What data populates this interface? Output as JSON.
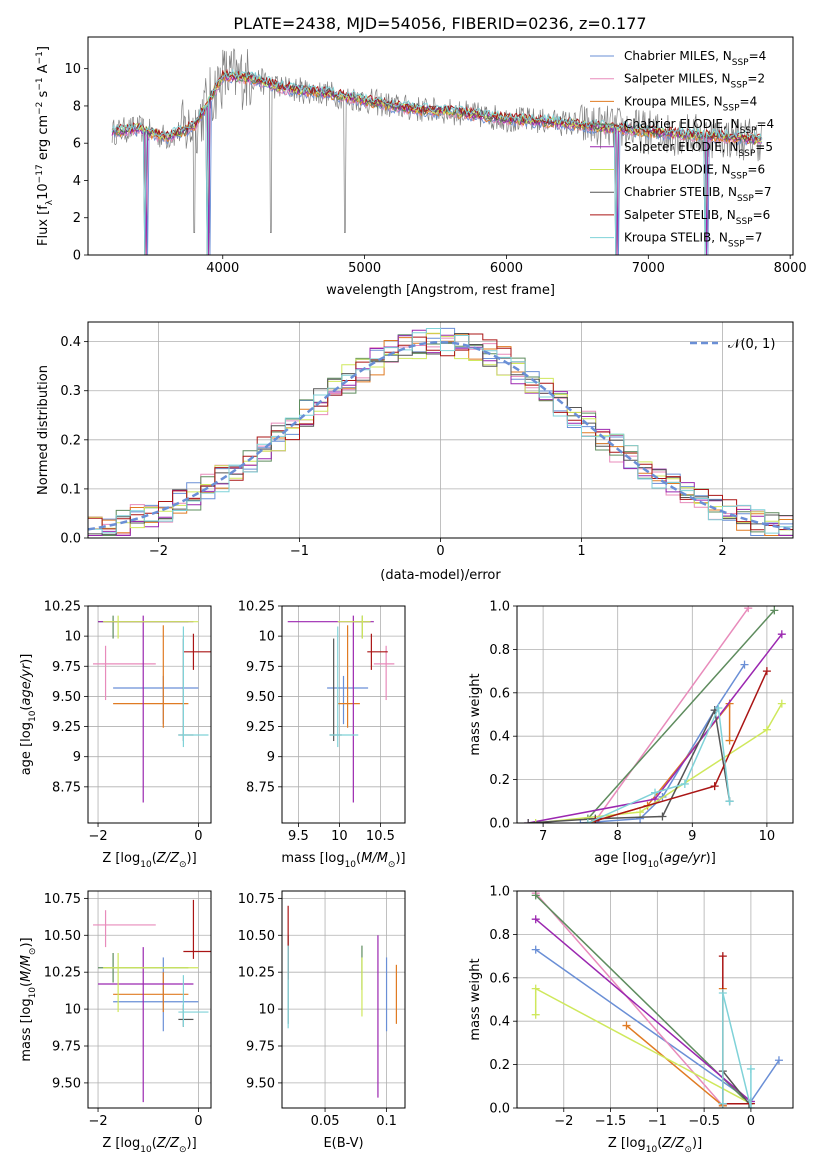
{
  "figure": {
    "title": "PLATE=2438, MJD=54056, FIBERID=0236, z=0.177",
    "colors": {
      "Chabrier MILES": "#6a8fd6",
      "Salpeter MILES": "#e88bbb",
      "Kroupa MILES": "#e07b23",
      "Chabrier ELODIE": "#5e8c5e",
      "Salpeter ELODIE": "#9b27b0",
      "Kroupa ELODIE": "#cfe85c",
      "Chabrier STELIB": "#555555",
      "Salpeter STELIB": "#aa1515",
      "Kroupa STELIB": "#7fd2d8",
      "data": "#808080"
    }
  },
  "chart_data": [
    {
      "id": "spectrum",
      "type": "line",
      "xlabel": "wavelength [Angstrom, rest frame]",
      "ylabel": "Flux [f_λ10^-17 erg cm^-2 s^-1 A^-1]",
      "xlim": [
        3050,
        8020
      ],
      "ylim": [
        0,
        11.7
      ],
      "xticks": [
        4000,
        5000,
        6000,
        7000,
        8000
      ],
      "yticks": [
        0,
        2,
        4,
        6,
        8,
        10
      ],
      "legend_position": "right",
      "legend": [
        {
          "name": "Chabrier MILES",
          "n_ssp": 4
        },
        {
          "name": "Salpeter MILES",
          "n_ssp": 2
        },
        {
          "name": "Kroupa MILES",
          "n_ssp": 4
        },
        {
          "name": "Chabrier ELODIE",
          "n_ssp": 4
        },
        {
          "name": "Salpeter ELODIE",
          "n_ssp": 5
        },
        {
          "name": "Kroupa ELODIE",
          "n_ssp": 6
        },
        {
          "name": "Chabrier STELIB",
          "n_ssp": 7
        },
        {
          "name": "Salpeter STELIB",
          "n_ssp": 6
        },
        {
          "name": "Kroupa STELIB",
          "n_ssp": 7
        }
      ],
      "continuum": {
        "x": [
          3220,
          3400,
          3600,
          3800,
          4000,
          4200,
          4400,
          4600,
          4800,
          5000,
          5200,
          5400,
          5600,
          5800,
          6000,
          6200,
          6400,
          6600,
          6800,
          7000,
          7200,
          7400,
          7600,
          7800
        ],
        "y": [
          6.6,
          6.8,
          6.3,
          6.9,
          9.6,
          9.5,
          9.0,
          8.8,
          8.6,
          8.3,
          8.0,
          7.8,
          7.7,
          7.5,
          7.3,
          7.2,
          7.1,
          6.9,
          6.8,
          6.6,
          6.5,
          6.4,
          6.3,
          6.2
        ]
      },
      "annotated_features": {
        "data_spikes_down_at": [
          3450,
          3800,
          3900,
          4340,
          4860
        ],
        "model_drops_to_zero_at": [
          3470,
          3910,
          6790,
          7420
        ]
      }
    },
    {
      "id": "residuals",
      "type": "histogram",
      "xlabel": "(data-model)/error",
      "ylabel": "Normed distribution",
      "xlim": [
        -2.5,
        2.5
      ],
      "ylim": [
        0,
        0.44
      ],
      "xticks": [
        -2,
        -1,
        0,
        1,
        2
      ],
      "yticks": [
        0.0,
        0.1,
        0.2,
        0.3,
        0.4
      ],
      "grid": true,
      "legend": "𝒩(0, 1)",
      "legend_position": "top-right",
      "reference": {
        "name": "N(0,1)",
        "mean": 0,
        "sigma": 1
      },
      "bin_width": 0.1
    },
    {
      "id": "age_vs_Z",
      "type": "errorbar",
      "xlabel": "Z [log10(Z/Z⊙)]",
      "ylabel": "age [log10(age/yr)]",
      "xlim": [
        -2.2,
        0.25
      ],
      "ylim": [
        8.45,
        10.25
      ],
      "xticks": [
        -2,
        0
      ],
      "yticks": [
        8.75,
        9.0,
        9.25,
        9.5,
        9.75,
        10.0,
        10.25
      ],
      "grid": true,
      "points": [
        {
          "model": "Chabrier MILES",
          "x": -0.7,
          "xerr": [
            1.0,
            0.7
          ],
          "y": 9.57,
          "yerr": [
            0.3,
            0.1
          ]
        },
        {
          "model": "Salpeter MILES",
          "x": -1.85,
          "xerr": [
            0.25,
            1.0
          ],
          "y": 9.77,
          "yerr": [
            0.3,
            0.15
          ]
        },
        {
          "model": "Kroupa MILES",
          "x": -0.7,
          "xerr": [
            1.0,
            0.5
          ],
          "y": 9.44,
          "yerr": [
            0.2,
            0.65
          ]
        },
        {
          "model": "Chabrier ELODIE",
          "x": -1.7,
          "xerr": [
            0.3,
            1.5
          ],
          "y": 10.12,
          "yerr": [
            0.14,
            0.05
          ]
        },
        {
          "model": "Salpeter ELODIE",
          "x": -1.1,
          "xerr": [
            0.9,
            1.0
          ],
          "y": 10.12,
          "yerr": [
            1.5,
            0.05
          ]
        },
        {
          "model": "Kroupa ELODIE",
          "x": -1.6,
          "xerr": [
            0.3,
            1.6
          ],
          "y": 10.12,
          "yerr": [
            0.14,
            0.05
          ]
        },
        {
          "model": "Chabrier STELIB",
          "x": -0.3,
          "xerr": [
            0.1,
            0.2
          ],
          "y": 9.18,
          "yerr": [
            0.05,
            0.8
          ]
        },
        {
          "model": "Salpeter STELIB",
          "x": -0.1,
          "xerr": [
            0.2,
            0.5
          ],
          "y": 9.87,
          "yerr": [
            0.15,
            0.15
          ]
        },
        {
          "model": "Kroupa STELIB",
          "x": -0.3,
          "xerr": [
            0.1,
            0.5
          ],
          "y": 9.18,
          "yerr": [
            0.1,
            0.9
          ]
        }
      ]
    },
    {
      "id": "age_vs_mass",
      "type": "errorbar",
      "xlabel": "mass [log10(M/M⊙)]",
      "ylabel": "",
      "xlim": [
        9.3,
        10.8
      ],
      "ylim": [
        8.45,
        10.25
      ],
      "xticks": [
        9.5,
        10.0,
        10.5
      ],
      "yticks": [
        8.75,
        9.0,
        9.25,
        9.5,
        9.75,
        10.0,
        10.25
      ],
      "grid": true,
      "points": [
        {
          "model": "Chabrier MILES",
          "x": 10.05,
          "xerr": [
            0.2,
            0.3
          ],
          "y": 9.57,
          "yerr": [
            0.3,
            0.1
          ]
        },
        {
          "model": "Salpeter MILES",
          "x": 10.57,
          "xerr": [
            0.15,
            0.1
          ],
          "y": 9.77,
          "yerr": [
            0.3,
            0.15
          ]
        },
        {
          "model": "Kroupa MILES",
          "x": 10.1,
          "xerr": [
            0.12,
            0.15
          ],
          "y": 9.44,
          "yerr": [
            0.2,
            0.65
          ]
        },
        {
          "model": "Chabrier ELODIE",
          "x": 10.28,
          "xerr": [
            0.1,
            0.1
          ],
          "y": 10.12,
          "yerr": [
            0.14,
            0.05
          ]
        },
        {
          "model": "Salpeter ELODIE",
          "x": 10.17,
          "xerr": [
            0.8,
            0.25
          ],
          "y": 10.12,
          "yerr": [
            1.5,
            0.05
          ]
        },
        {
          "model": "Kroupa ELODIE",
          "x": 10.28,
          "xerr": [
            0.3,
            0.1
          ],
          "y": 10.12,
          "yerr": [
            0.14,
            0.05
          ]
        },
        {
          "model": "Chabrier STELIB",
          "x": 9.93,
          "xerr": [
            0.05,
            0.1
          ],
          "y": 9.18,
          "yerr": [
            0.05,
            0.8
          ]
        },
        {
          "model": "Salpeter STELIB",
          "x": 10.39,
          "xerr": [
            0.05,
            0.2
          ],
          "y": 9.87,
          "yerr": [
            0.15,
            0.15
          ]
        },
        {
          "model": "Kroupa STELIB",
          "x": 9.98,
          "xerr": [
            0.1,
            0.25
          ],
          "y": 9.18,
          "yerr": [
            0.1,
            0.9
          ]
        }
      ]
    },
    {
      "id": "mass_weight_vs_age",
      "type": "line",
      "xlabel": "age  [log10(age/yr)]",
      "ylabel": "mass weight",
      "xlim": [
        6.65,
        10.35
      ],
      "ylim": [
        0,
        1.0
      ],
      "xticks": [
        7,
        8,
        9,
        10
      ],
      "yticks": [
        0.0,
        0.2,
        0.4,
        0.6,
        0.8,
        1.0
      ],
      "grid": true,
      "series": [
        {
          "model": "Chabrier MILES",
          "x": [
            7.5,
            8.3,
            8.6,
            9.3,
            9.7
          ],
          "y": [
            0.0,
            0.02,
            0.12,
            0.52,
            0.73
          ]
        },
        {
          "model": "Salpeter MILES",
          "x": [
            7.7,
            9.75
          ],
          "y": [
            0.01,
            0.99
          ]
        },
        {
          "model": "Kroupa MILES",
          "x": [
            7.6,
            8.4,
            9.5,
            9.5
          ],
          "y": [
            0.0,
            0.08,
            0.55,
            0.38
          ]
        },
        {
          "model": "Chabrier ELODIE",
          "x": [
            7.6,
            10.1
          ],
          "y": [
            0.02,
            0.98
          ]
        },
        {
          "model": "Salpeter ELODIE",
          "x": [
            6.8,
            8.5,
            10.2
          ],
          "y": [
            0.0,
            0.11,
            0.87
          ]
        },
        {
          "model": "Kroupa ELODIE",
          "x": [
            6.9,
            8.3,
            10.0,
            10.2
          ],
          "y": [
            0.0,
            0.05,
            0.43,
            0.55
          ]
        },
        {
          "model": "Chabrier STELIB",
          "x": [
            6.8,
            7.7,
            8.6,
            9.3,
            9.5
          ],
          "y": [
            0.0,
            0.02,
            0.03,
            0.52,
            0.1
          ]
        },
        {
          "model": "Salpeter STELIB",
          "x": [
            7.7,
            9.3,
            10.0
          ],
          "y": [
            0.01,
            0.17,
            0.7
          ]
        },
        {
          "model": "Kroupa STELIB",
          "x": [
            7.6,
            8.5,
            8.9,
            9.35,
            9.5
          ],
          "y": [
            0.0,
            0.14,
            0.18,
            0.53,
            0.1
          ]
        }
      ]
    },
    {
      "id": "mass_vs_Z",
      "type": "errorbar",
      "xlabel": "Z [log10(Z/Z⊙)]",
      "ylabel": "mass [log10(M/M⊙)]",
      "xlim": [
        -2.2,
        0.25
      ],
      "ylim": [
        9.33,
        10.8
      ],
      "xticks": [
        -2,
        0
      ],
      "yticks": [
        9.5,
        9.75,
        10.0,
        10.25,
        10.5,
        10.75
      ],
      "grid": true,
      "points": [
        {
          "model": "Chabrier MILES",
          "x": -0.7,
          "xerr": [
            1.0,
            0.7
          ],
          "y": 10.05,
          "yerr": [
            0.2,
            0.3
          ]
        },
        {
          "model": "Salpeter MILES",
          "x": -1.85,
          "xerr": [
            0.25,
            1.0
          ],
          "y": 10.57,
          "yerr": [
            0.15,
            0.1
          ]
        },
        {
          "model": "Kroupa MILES",
          "x": -0.7,
          "xerr": [
            1.0,
            0.5
          ],
          "y": 10.1,
          "yerr": [
            0.12,
            0.15
          ]
        },
        {
          "model": "Chabrier ELODIE",
          "x": -1.7,
          "xerr": [
            0.3,
            1.5
          ],
          "y": 10.28,
          "yerr": [
            0.1,
            0.1
          ]
        },
        {
          "model": "Salpeter ELODIE",
          "x": -1.1,
          "xerr": [
            0.9,
            1.0
          ],
          "y": 10.17,
          "yerr": [
            0.8,
            0.25
          ]
        },
        {
          "model": "Kroupa ELODIE",
          "x": -1.6,
          "xerr": [
            0.3,
            1.6
          ],
          "y": 10.28,
          "yerr": [
            0.3,
            0.1
          ]
        },
        {
          "model": "Chabrier STELIB",
          "x": -0.3,
          "xerr": [
            0.1,
            0.2
          ],
          "y": 9.93,
          "yerr": [
            0.05,
            0.1
          ]
        },
        {
          "model": "Salpeter STELIB",
          "x": -0.1,
          "xerr": [
            0.2,
            0.5
          ],
          "y": 10.39,
          "yerr": [
            0.05,
            0.35
          ]
        },
        {
          "model": "Kroupa STELIB",
          "x": -0.3,
          "xerr": [
            0.1,
            0.5
          ],
          "y": 9.98,
          "yerr": [
            0.1,
            0.25
          ]
        }
      ]
    },
    {
      "id": "mass_vs_EBV",
      "type": "errorbar",
      "xlabel": "E(B-V)",
      "ylabel": "",
      "xlim": [
        0.015,
        0.115
      ],
      "ylim": [
        9.33,
        10.8
      ],
      "xticks": [
        0.05,
        0.1
      ],
      "yticks": [
        9.5,
        9.75,
        10.0,
        10.25,
        10.5,
        10.75
      ],
      "grid": true,
      "points": [
        {
          "model": "Chabrier MILES",
          "x": 0.1,
          "y": 10.1,
          "yerr": [
            0.25,
            0.25
          ]
        },
        {
          "model": "Kroupa MILES",
          "x": 0.108,
          "y": 10.1,
          "yerr": [
            0.2,
            0.2
          ]
        },
        {
          "model": "Chabrier ELODIE",
          "x": 0.08,
          "y": 10.28,
          "yerr": [
            0.15,
            0.15
          ]
        },
        {
          "model": "Salpeter ELODIE",
          "x": 0.093,
          "y": 9.95,
          "yerr": [
            0.55,
            0.55
          ]
        },
        {
          "model": "Kroupa ELODIE",
          "x": 0.08,
          "y": 10.15,
          "yerr": [
            0.2,
            0.2
          ]
        },
        {
          "model": "Chabrier STELIB",
          "x": 0.02,
          "y": 10.2,
          "yerr": [
            0.3,
            0.3
          ]
        },
        {
          "model": "Salpeter STELIB",
          "x": 0.02,
          "y": 10.45,
          "yerr": [
            0.25,
            0.25
          ]
        },
        {
          "model": "Kroupa STELIB",
          "x": 0.02,
          "y": 10.15,
          "yerr": [
            0.28,
            0.28
          ]
        }
      ]
    },
    {
      "id": "mass_weight_vs_Z",
      "type": "line",
      "xlabel": "Z [log10(Z/Z⊙)]",
      "ylabel": "mass weight",
      "xlim": [
        -2.5,
        0.45
      ],
      "ylim": [
        0,
        1.0
      ],
      "xticks": [
        -2.0,
        -1.5,
        -1.0,
        -0.5,
        0.0
      ],
      "yticks": [
        0.0,
        0.2,
        0.4,
        0.6,
        0.8,
        1.0
      ],
      "grid": true,
      "series": [
        {
          "model": "Chabrier MILES",
          "x": [
            -2.3,
            0.0,
            0.3
          ],
          "y": [
            0.73,
            0.03,
            0.22
          ]
        },
        {
          "model": "Salpeter MILES",
          "x": [
            -2.3,
            -0.3
          ],
          "y": [
            0.99,
            0.01
          ]
        },
        {
          "model": "Kroupa MILES",
          "x": [
            -1.33,
            -0.3,
            -0.3
          ],
          "y": [
            0.38,
            0.01,
            0.55
          ]
        },
        {
          "model": "Chabrier ELODIE",
          "x": [
            -2.3,
            -0.02
          ],
          "y": [
            0.98,
            0.02
          ]
        },
        {
          "model": "Salpeter ELODIE",
          "x": [
            -2.3,
            0.0
          ],
          "y": [
            0.87,
            0.03
          ]
        },
        {
          "model": "Kroupa ELODIE",
          "x": [
            -2.3,
            -2.3,
            0.0
          ],
          "y": [
            0.43,
            0.55,
            0.02
          ]
        },
        {
          "model": "Chabrier STELIB",
          "x": [
            -0.3,
            -0.3,
            -0.02
          ],
          "y": [
            0.02,
            0.17,
            0.02
          ]
        },
        {
          "model": "Salpeter STELIB",
          "x": [
            -0.3,
            -0.3,
            0.0
          ],
          "y": [
            0.7,
            0.02,
            0.02
          ]
        },
        {
          "model": "Kroupa STELIB",
          "x": [
            -0.3,
            -0.3,
            0.0,
            0.0
          ],
          "y": [
            0.02,
            0.53,
            0.0,
            0.18
          ]
        }
      ]
    }
  ]
}
